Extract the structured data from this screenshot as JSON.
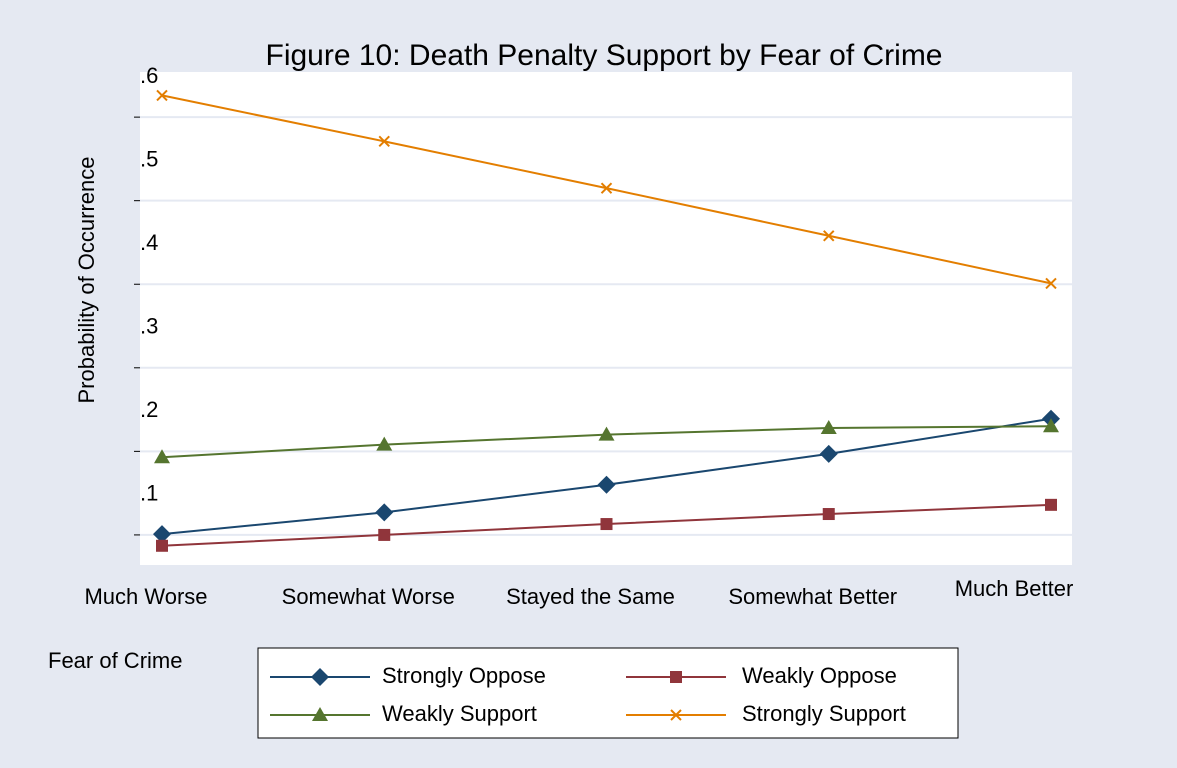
{
  "chart_data": {
    "type": "line",
    "title": "Figure 10: Death Penalty Support by Fear of Crime",
    "ylabel": "Probability of Occurrence",
    "xlabel": "Fear of Crime",
    "categories": [
      "Much Worse",
      "Somewhat Worse",
      "Stayed the Same",
      "Somewhat Better",
      "Much Better"
    ],
    "series": [
      {
        "name": "Strongly Oppose",
        "color": "#1a476f",
        "marker": "diamond",
        "values": [
          0.101,
          0.127,
          0.16,
          0.197,
          0.239
        ]
      },
      {
        "name": "Weakly Oppose",
        "color": "#90353b",
        "marker": "square",
        "values": [
          0.087,
          0.1,
          0.113,
          0.125,
          0.136
        ]
      },
      {
        "name": "Weakly Support",
        "color": "#55752f",
        "marker": "triangle",
        "values": [
          0.193,
          0.208,
          0.22,
          0.228,
          0.23
        ]
      },
      {
        "name": "Strongly Support",
        "color": "#e37e00",
        "marker": "x",
        "values": [
          0.626,
          0.571,
          0.515,
          0.458,
          0.401
        ]
      }
    ],
    "ylim": [
      0.064,
      0.654
    ],
    "yticks": [
      {
        "value": 0.1,
        "label": ".1"
      },
      {
        "value": 0.2,
        "label": ".2"
      },
      {
        "value": 0.3,
        "label": ".3"
      },
      {
        "value": 0.4,
        "label": ".4"
      },
      {
        "value": 0.5,
        "label": ".5"
      },
      {
        "value": 0.6,
        "label": ".6"
      }
    ],
    "grid": true,
    "legend": "bottom"
  }
}
